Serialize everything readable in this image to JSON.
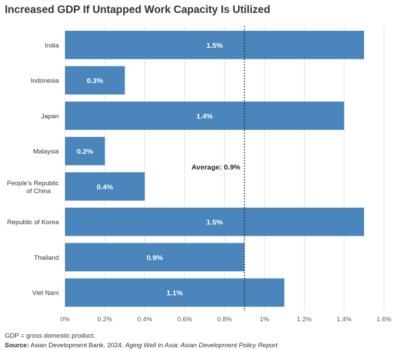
{
  "chart_data": {
    "type": "bar",
    "orientation": "horizontal",
    "title": "Increased GDP If Untapped Work Capacity Is Utilized",
    "categories": [
      "India",
      "Indonesia",
      "Japan",
      "Malaysia",
      "People's Republic of China",
      "Republic of Korea",
      "Thailand",
      "Viet Nam"
    ],
    "values": [
      1.5,
      0.3,
      1.4,
      0.2,
      0.4,
      1.5,
      0.9,
      1.1
    ],
    "value_labels": [
      "1.5%",
      "0.3%",
      "1.4%",
      "0.2%",
      "0.4%",
      "1.5%",
      "0.9%",
      "1.1%"
    ],
    "xlim": [
      0,
      1.6
    ],
    "xticks": [
      0,
      0.2,
      0.4,
      0.6,
      0.8,
      1.0,
      1.2,
      1.4,
      1.6
    ],
    "xtick_labels": [
      "0%",
      "0.2%",
      "0.4%",
      "0.6%",
      "0.8%",
      "1%",
      "1.2%",
      "1.4%",
      "1.6%"
    ],
    "xlabel": "",
    "ylabel": "",
    "grid": "vertical",
    "reference_line": {
      "value": 0.9,
      "label": "Average: 0.9%"
    },
    "bar_color": "#4a86bb",
    "reference_line_color": "#222222"
  },
  "notes": {
    "footnote": "GDP = gross domestic product.",
    "source_prefix": "Source:",
    "source_text": " Asian Development Bank. 2024. ",
    "source_title": "Aging Well in Asia: Asian Development Policy Report"
  }
}
